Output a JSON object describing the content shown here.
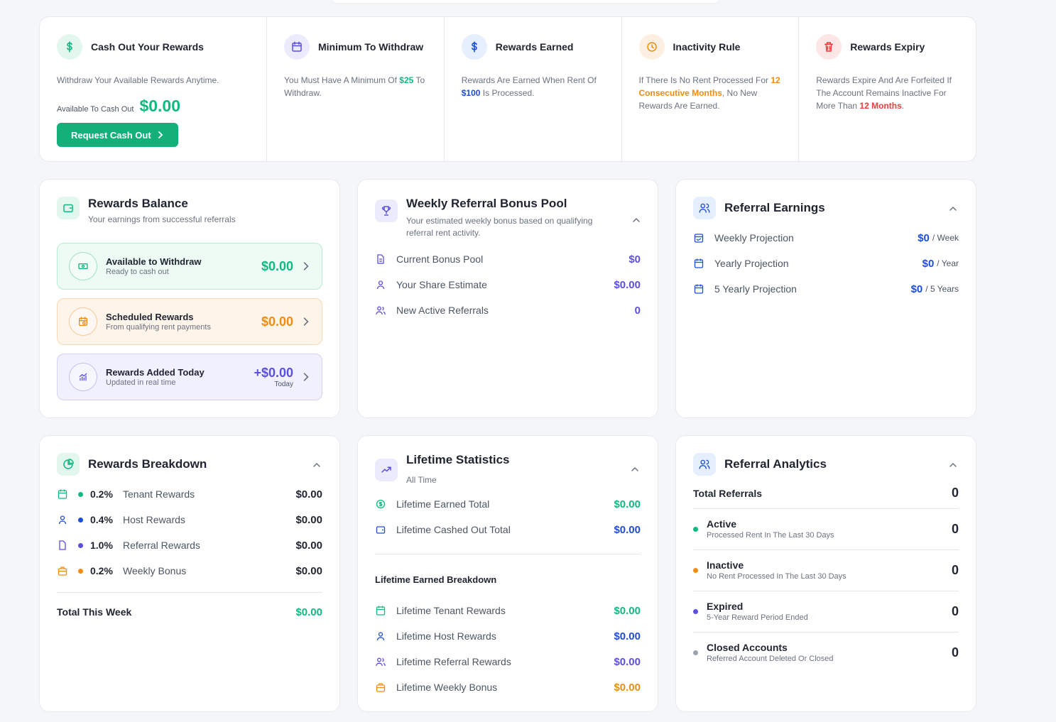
{
  "info_bar": {
    "cash_out": {
      "title": "Cash Out Your Rewards",
      "description": "Withdraw Your Available Rewards Anytime.",
      "available_label": "Available To Cash Out",
      "available_value": "$0.00",
      "button_label": "Request Cash Out"
    },
    "minimum": {
      "title": "Minimum To Withdraw",
      "desc_pre": "You Must Have A Minimum Of ",
      "desc_amount": "$25",
      "desc_post": " To Withdraw."
    },
    "earned": {
      "title": "Rewards Earned",
      "desc_pre": "Rewards Are Earned When Rent Of ",
      "desc_amount": "$100",
      "desc_post": " Is Processed."
    },
    "inactivity": {
      "title": "Inactivity Rule",
      "desc_pre": "If There Is No Rent Processed For ",
      "desc_highlight": "12 Consecutive Months",
      "desc_post": ", No New Rewards Are Earned."
    },
    "expiry": {
      "title": "Rewards Expiry",
      "desc_pre": "Rewards Expire And Are Forfeited If The Account Remains Inactive For More Than ",
      "desc_highlight": "12 Months",
      "desc_post": "."
    }
  },
  "rewards_balance": {
    "title": "Rewards Balance",
    "subtitle": "Your earnings from successful referrals",
    "items": [
      {
        "title": "Available to Withdraw",
        "subtitle": "Ready to cash out",
        "value": "$0.00"
      },
      {
        "title": "Scheduled Rewards",
        "subtitle": "From qualifying rent payments",
        "value": "$0.00"
      },
      {
        "title": "Rewards Added Today",
        "subtitle": "Updated in real time",
        "value": "+$0.00",
        "value_sub": "Today"
      }
    ]
  },
  "weekly_pool": {
    "title": "Weekly Referral Bonus Pool",
    "subtitle": "Your estimated weekly bonus based on qualifying referral rent activity.",
    "rows": [
      {
        "label": "Current Bonus Pool",
        "value": "$0"
      },
      {
        "label": "Your Share Estimate",
        "value": "$0.00"
      },
      {
        "label": "New Active Referrals",
        "value": "0"
      }
    ]
  },
  "referral_earnings": {
    "title": "Referral Earnings",
    "rows": [
      {
        "label": "Weekly Projection",
        "value": "$0",
        "unit": "/ Week"
      },
      {
        "label": "Yearly Projection",
        "value": "$0",
        "unit": "/ Year"
      },
      {
        "label": "5 Yearly Projection",
        "value": "$0",
        "unit": "/ 5 Years"
      }
    ]
  },
  "rewards_breakdown": {
    "title": "Rewards Breakdown",
    "rows": [
      {
        "pct": "0.2%",
        "label": "Tenant Rewards",
        "value": "$0.00"
      },
      {
        "pct": "0.4%",
        "label": "Host Rewards",
        "value": "$0.00"
      },
      {
        "pct": "1.0%",
        "label": "Referral Rewards",
        "value": "$0.00"
      },
      {
        "pct": "0.2%",
        "label": "Weekly Bonus",
        "value": "$0.00"
      }
    ],
    "total_label": "Total This Week",
    "total_value": "$0.00"
  },
  "lifetime": {
    "title": "Lifetime Statistics",
    "subtitle": "All Time",
    "rows": [
      {
        "label": "Lifetime Earned Total",
        "value": "$0.00"
      },
      {
        "label": "Lifetime Cashed Out Total",
        "value": "$0.00"
      }
    ],
    "breakdown_title": "Lifetime Earned Breakdown",
    "breakdown": [
      {
        "label": "Lifetime Tenant Rewards",
        "value": "$0.00"
      },
      {
        "label": "Lifetime Host Rewards",
        "value": "$0.00"
      },
      {
        "label": "Lifetime Referral Rewards",
        "value": "$0.00"
      },
      {
        "label": "Lifetime Weekly Bonus",
        "value": "$0.00"
      }
    ]
  },
  "analytics": {
    "title": "Referral Analytics",
    "total_label": "Total Referrals",
    "total_value": "0",
    "rows": [
      {
        "title": "Active",
        "subtitle": "Processed Rent In The Last 30 Days",
        "value": "0"
      },
      {
        "title": "Inactive",
        "subtitle": "No Rent Processed In The Last 30 Days",
        "value": "0"
      },
      {
        "title": "Expired",
        "subtitle": "5-Year Reward Period Ended",
        "value": "0"
      },
      {
        "title": "Closed Accounts",
        "subtitle": "Referred Account Deleted Or Closed",
        "value": "0"
      }
    ]
  },
  "colors": {
    "green": "#10b981",
    "blue": "#1d4ed8",
    "purple": "#5b4fe0",
    "orange": "#f08c10",
    "red": "#ef3b3b",
    "gray": "#9ca3af"
  }
}
